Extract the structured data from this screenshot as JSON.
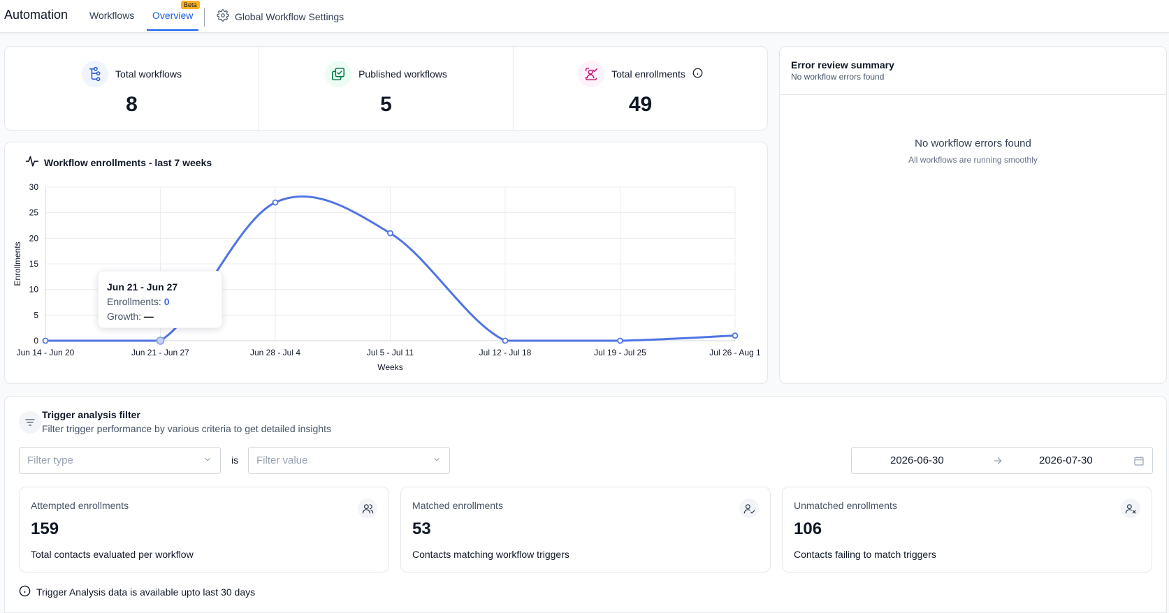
{
  "nav": {
    "app_title": "Automation",
    "tabs": [
      {
        "label": "Workflows",
        "active": false
      },
      {
        "label": "Overview",
        "active": true,
        "badge": "Beta"
      }
    ],
    "settings_label": "Global Workflow Settings"
  },
  "stats": [
    {
      "label": "Total workflows",
      "value": "8",
      "icon": "workflow-tree-icon"
    },
    {
      "label": "Published workflows",
      "value": "5",
      "icon": "published-copy-icon"
    },
    {
      "label": "Total enrollments",
      "value": "49",
      "icon": "user-check-icon"
    }
  ],
  "chart": {
    "title": "Workflow enrollments - last 7 weeks",
    "tooltip": {
      "title": "Jun 21 - Jun 27",
      "enrollments_label": "Enrollments:",
      "enrollments_value": "0",
      "growth_label": "Growth:",
      "growth_value": "—"
    }
  },
  "chart_data": {
    "type": "line",
    "title": "Workflow enrollments - last 7 weeks",
    "xlabel": "Weeks",
    "ylabel": "Enrollments",
    "categories": [
      "Jun 14 - Jun 20",
      "Jun 21 - Jun 27",
      "Jun 28 - Jul 4",
      "Jul 5 - Jul 11",
      "Jul 12 - Jul 18",
      "Jul 19 - Jul 25",
      "Jul 26 - Aug 1"
    ],
    "series": [
      {
        "name": "Enrollments",
        "values": [
          0,
          0,
          27,
          21,
          0,
          0,
          1
        ]
      }
    ],
    "ylim": [
      0,
      30
    ],
    "yticks": [
      0,
      5,
      10,
      15,
      20,
      25,
      30
    ],
    "grid": true,
    "smooth": true,
    "highlighted_index": 1,
    "line_color": "#4f74e3"
  },
  "error_summary": {
    "title": "Error review summary",
    "subtitle": "No workflow errors found",
    "empty_title": "No workflow errors found",
    "empty_subtitle": "All workflows are running smoothly"
  },
  "trigger": {
    "title": "Trigger analysis filter",
    "subtitle": "Filter trigger performance by various criteria to get detailed insights",
    "filter_type_placeholder": "Filter type",
    "is_label": "is",
    "filter_value_placeholder": "Filter value",
    "date_from": "2026-06-30",
    "date_to": "2026-07-30",
    "metrics": [
      {
        "label": "Attempted enrollments",
        "value": "159",
        "desc": "Total contacts evaluated per workflow",
        "icon": "users-icon"
      },
      {
        "label": "Matched enrollments",
        "value": "53",
        "desc": "Contacts matching workflow triggers",
        "icon": "user-check-icon"
      },
      {
        "label": "Unmatched enrollments",
        "value": "106",
        "desc": "Contacts failing to match triggers",
        "icon": "user-x-icon"
      }
    ],
    "note": "Trigger Analysis data is available upto last 30 days"
  }
}
